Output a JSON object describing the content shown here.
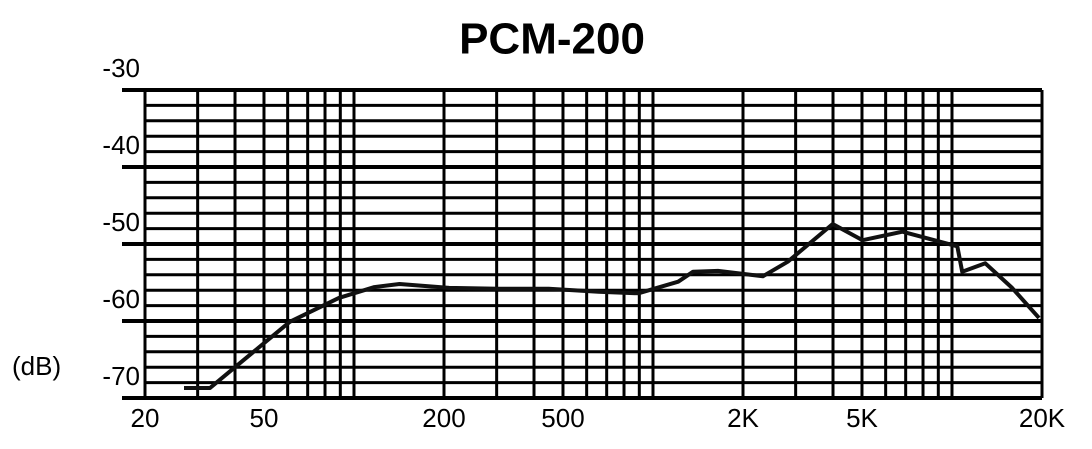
{
  "chart_data": {
    "type": "line",
    "title": "PCM-200",
    "ylabel": "(dB)",
    "log_x": true,
    "x": [
      27,
      33,
      40,
      61,
      89,
      117,
      142,
      208,
      305,
      448,
      657,
      894,
      1214,
      1362,
      1650,
      2332,
      2825,
      3990,
      5024,
      6825,
      10420,
      10820,
      12920,
      15890,
      19540
    ],
    "values": [
      -68.7,
      -68.7,
      -66,
      -60.1,
      -57,
      -55.6,
      -55.2,
      -55.7,
      -55.8,
      -55.8,
      -56.2,
      -56.4,
      -54.9,
      -53.6,
      -53.5,
      -54.2,
      -52.3,
      -47.4,
      -49.5,
      -48.4,
      -50.3,
      -53.6,
      -52.5,
      -55.7,
      -59.6
    ],
    "color": "#111111",
    "xlim": [
      20,
      20000
    ],
    "xticks": [
      20,
      50,
      200,
      500,
      {
        "value": 2000,
        "label": "2K"
      },
      {
        "value": 5000,
        "label": "5K"
      },
      {
        "value": 20000,
        "label": "20K"
      }
    ],
    "x_gridlines": [
      20,
      30,
      40,
      50,
      60,
      70,
      80,
      90,
      100,
      200,
      300,
      400,
      500,
      600,
      700,
      800,
      900,
      1000,
      2000,
      3000,
      4000,
      5000,
      6000,
      7000,
      8000,
      9000,
      10000,
      20000
    ],
    "ylim": [
      -70,
      -30
    ],
    "yticks": [
      -70,
      -60,
      -50,
      -40,
      -30
    ],
    "y_gridlines": [
      -70,
      -68,
      -66,
      -64,
      -62,
      -60,
      -58,
      -56,
      -54,
      -52,
      -50,
      -48,
      -46,
      -44,
      -42,
      -40,
      -38,
      -36,
      -34,
      -32,
      -30
    ],
    "grid": true
  }
}
